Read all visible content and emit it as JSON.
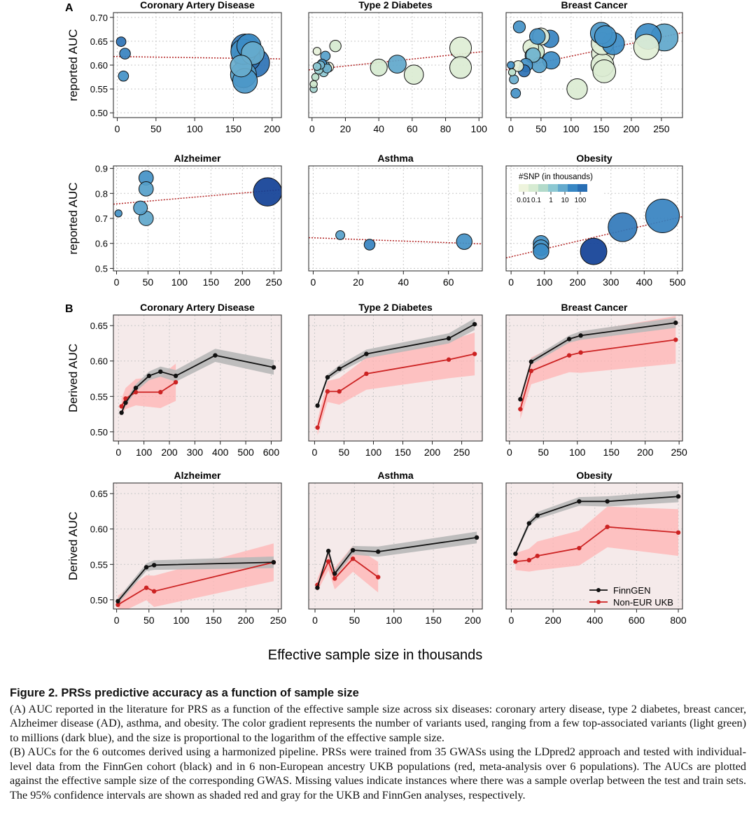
{
  "panel_labels": [
    "A",
    "B"
  ],
  "figure_xlabel": "Effective sample size in thousands",
  "colors": {
    "finngen": "#111111",
    "noneur": "#cc2222",
    "trend": "#b22222"
  },
  "legend_b": {
    "entries": [
      "FinnGEN",
      "Non-EUR UKB"
    ]
  },
  "legend_a": {
    "title": "#SNP (in thousands)",
    "ticks": [
      "0.01",
      "0.1",
      "1",
      "10",
      "100"
    ]
  },
  "caption": {
    "title": "Figure 2.   PRSs predictive accuracy as a function of sample size",
    "para_a": "(A) AUC reported in the literature for PRS as a function of the effective sample size across six diseases: coronary artery disease, type 2 diabetes, breast cancer, Alzheimer disease (AD), asthma, and obesity. The color gradient represents the number of variants used, ranging from a few top-associated variants (light green) to millions (dark blue), and the size is proportional to the logarithm of the effective sample size.",
    "para_b": "(B) AUCs for the 6 outcomes derived using a harmonized pipeline. PRSs were trained from 35 GWASs using the LDpred2 approach and tested with individual-level data from the FinnGen cohort (black) and in 6 non-European ancestry UKB populations (red, meta-analysis over 6 populations). The AUCs are plotted against the effective sample size of the corresponding GWAS. Missing values indicate instances where there was a sample overlap between the test and train sets. The 95% confidence intervals are shown as shaded red and gray for the UKB and FinnGen analyses, respectively."
  },
  "chart_data": [
    {
      "type": "scatter",
      "title": "Coronary Artery Disease",
      "ylabel": "reported AUC",
      "xlim": [
        -5,
        212
      ],
      "ylim": [
        0.49,
        0.71
      ],
      "xticks": [
        0,
        50,
        100,
        150,
        200
      ],
      "yticks": [
        0.5,
        0.55,
        0.6,
        0.65,
        0.7
      ],
      "trend": [
        [
          -5,
          0.618
        ],
        [
          212,
          0.613
        ]
      ],
      "points": [
        [
          5,
          0.649,
          1.6,
          0.8
        ],
        [
          10,
          0.624,
          1.8,
          0.75
        ],
        [
          8,
          0.577,
          1.7,
          0.7
        ],
        [
          165,
          0.636,
          4.6,
          0.78
        ],
        [
          168,
          0.615,
          4.4,
          0.8
        ],
        [
          163,
          0.628,
          4.2,
          0.7
        ],
        [
          170,
          0.64,
          4.0,
          0.72
        ],
        [
          163,
          0.58,
          4.3,
          0.65
        ],
        [
          165,
          0.567,
          4.1,
          0.68
        ],
        [
          178,
          0.605,
          4.8,
          0.8
        ],
        [
          175,
          0.625,
          3.8,
          0.6
        ],
        [
          160,
          0.598,
          3.6,
          0.6
        ]
      ]
    },
    {
      "type": "scatter",
      "title": "Type 2 Diabetes",
      "ylabel": "",
      "xlim": [
        -2,
        102
      ],
      "ylim": [
        0.49,
        0.71
      ],
      "xticks": [
        0,
        20,
        40,
        60,
        80,
        100
      ],
      "yticks": [
        0.5,
        0.55,
        0.6,
        0.65,
        0.7
      ],
      "trend": [
        [
          -2,
          0.59
        ],
        [
          102,
          0.628
        ]
      ],
      "points": [
        [
          3,
          0.629,
          1.3,
          0.05
        ],
        [
          1,
          0.55,
          1.2,
          0.4
        ],
        [
          2,
          0.575,
          1.2,
          0.3
        ],
        [
          3,
          0.597,
          1.3,
          0.5
        ],
        [
          4,
          0.59,
          1.4,
          0.45
        ],
        [
          5,
          0.6,
          1.4,
          0.55
        ],
        [
          7,
          0.585,
          1.5,
          0.5
        ],
        [
          8,
          0.598,
          1.5,
          0.6
        ],
        [
          8,
          0.619,
          1.6,
          0.65
        ],
        [
          10,
          0.596,
          1.6,
          0.0
        ],
        [
          14,
          0.64,
          1.9,
          0.15
        ],
        [
          1,
          0.56,
          1.2,
          0.2
        ],
        [
          6,
          0.603,
          1.5,
          0.7
        ],
        [
          40,
          0.595,
          2.8,
          0.15
        ],
        [
          51,
          0.602,
          3.0,
          0.62
        ],
        [
          61,
          0.58,
          3.2,
          0.12
        ],
        [
          89,
          0.636,
          3.6,
          0.1
        ],
        [
          89,
          0.595,
          3.6,
          0.12
        ],
        [
          9,
          0.593,
          1.5,
          0.58
        ]
      ]
    },
    {
      "type": "scatter",
      "title": "Breast Cancer",
      "ylabel": "",
      "xlim": [
        -8,
        285
      ],
      "ylim": [
        0.49,
        0.71
      ],
      "xticks": [
        0,
        50,
        100,
        150,
        200,
        250
      ],
      "yticks": [
        0.5,
        0.55,
        0.6,
        0.65,
        0.7
      ],
      "trend": [
        [
          -8,
          0.59
        ],
        [
          285,
          0.668
        ]
      ],
      "points": [
        [
          0,
          0.6,
          1.2,
          0.7
        ],
        [
          2,
          0.585,
          1.2,
          0.3
        ],
        [
          5,
          0.57,
          1.5,
          0.6
        ],
        [
          8,
          0.541,
          1.6,
          0.7
        ],
        [
          12,
          0.598,
          1.8,
          0.05
        ],
        [
          14,
          0.68,
          2.0,
          0.7
        ],
        [
          22,
          0.588,
          2.0,
          0.8
        ],
        [
          33,
          0.637,
          2.6,
          0.1
        ],
        [
          36,
          0.62,
          2.5,
          0.65
        ],
        [
          42,
          0.628,
          2.7,
          0.2
        ],
        [
          44,
          0.66,
          2.6,
          0.7
        ],
        [
          50,
          0.66,
          2.8,
          0.05
        ],
        [
          65,
          0.655,
          2.9,
          0.75
        ],
        [
          67,
          0.61,
          2.9,
          0.72
        ],
        [
          47,
          0.6,
          2.5,
          0.65
        ],
        [
          110,
          0.55,
          3.4,
          0.12
        ],
        [
          150,
          0.667,
          3.6,
          0.68
        ],
        [
          152,
          0.645,
          3.7,
          0.1
        ],
        [
          153,
          0.624,
          3.8,
          0.08
        ],
        [
          152,
          0.6,
          3.8,
          0.1
        ],
        [
          155,
          0.587,
          3.8,
          0.12
        ],
        [
          157,
          0.66,
          3.6,
          0.7
        ],
        [
          170,
          0.645,
          3.7,
          0.72
        ],
        [
          225,
          0.638,
          4.2,
          0.08
        ],
        [
          228,
          0.66,
          4.3,
          0.72
        ],
        [
          255,
          0.658,
          4.5,
          0.62
        ],
        [
          37,
          0.621,
          2.4,
          0.55
        ],
        [
          25,
          0.6,
          2.2,
          0.7
        ]
      ]
    },
    {
      "type": "scatter",
      "title": "Alzheimer",
      "ylabel": "reported AUC",
      "xlim": [
        -5,
        262
      ],
      "ylim": [
        0.49,
        0.91
      ],
      "xticks": [
        0,
        50,
        100,
        150,
        200,
        250
      ],
      "yticks": [
        0.5,
        0.6,
        0.7,
        0.8,
        0.9
      ],
      "trend": [
        [
          -5,
          0.757
        ],
        [
          262,
          0.815
        ]
      ],
      "points": [
        [
          3,
          0.72,
          1.2,
          0.7
        ],
        [
          38,
          0.742,
          2.3,
          0.65
        ],
        [
          47,
          0.7,
          2.4,
          0.62
        ],
        [
          47,
          0.862,
          2.4,
          0.7
        ],
        [
          47,
          0.818,
          2.4,
          0.65
        ],
        [
          240,
          0.806,
          4.7,
          0.95
        ]
      ]
    },
    {
      "type": "scatter",
      "title": "Asthma",
      "ylabel": "",
      "xlim": [
        -2,
        75
      ],
      "ylim": [
        0.49,
        0.91
      ],
      "xticks": [
        0,
        20,
        40,
        60
      ],
      "yticks": [
        0.5,
        0.6,
        0.7,
        0.8,
        0.9
      ],
      "trend": [
        [
          -2,
          0.623
        ],
        [
          75,
          0.598
        ]
      ],
      "points": [
        [
          12,
          0.633,
          1.5,
          0.65
        ],
        [
          25,
          0.595,
          1.8,
          0.75
        ],
        [
          67,
          0.607,
          2.6,
          0.7
        ]
      ]
    },
    {
      "type": "scatter",
      "title": "Obesity",
      "ylabel": "",
      "xlim": [
        -15,
        515
      ],
      "ylim": [
        0.49,
        0.91
      ],
      "xticks": [
        0,
        100,
        200,
        300,
        400,
        500
      ],
      "yticks": [
        0.5,
        0.6,
        0.7,
        0.8,
        0.9
      ],
      "trend": [
        [
          -15,
          0.542
        ],
        [
          515,
          0.707
        ]
      ],
      "points": [
        [
          90,
          0.6,
          2.6,
          0.7
        ],
        [
          90,
          0.583,
          2.6,
          0.68
        ],
        [
          90,
          0.568,
          2.6,
          0.72
        ],
        [
          248,
          0.568,
          4.4,
          0.95
        ],
        [
          335,
          0.665,
          4.8,
          0.78
        ],
        [
          455,
          0.71,
          5.6,
          0.75
        ]
      ]
    },
    {
      "type": "line",
      "title": "Coronary Artery Disease",
      "ylabel": "Derived AUC",
      "xlim": [
        -20,
        640
      ],
      "ylim": [
        0.487,
        0.665
      ],
      "xticks": [
        0,
        100,
        200,
        300,
        400,
        500,
        600
      ],
      "yticks": [
        0.5,
        0.55,
        0.6,
        0.65
      ],
      "series": [
        {
          "name": "FinnGEN",
          "x": [
            12,
            28,
            68,
            120,
            165,
            225,
            380,
            610
          ],
          "y": [
            0.527,
            0.541,
            0.562,
            0.579,
            0.585,
            0.579,
            0.608,
            0.591
          ],
          "ci": 0.003
        },
        {
          "name": "Non-EUR UKB",
          "x": [
            12,
            28,
            68,
            165,
            225
          ],
          "y": [
            0.536,
            0.547,
            0.556,
            0.556,
            0.57
          ],
          "ci": 0.011
        }
      ]
    },
    {
      "type": "line",
      "title": "Type 2 Diabetes",
      "ylabel": "",
      "xlim": [
        -10,
        285
      ],
      "ylim": [
        0.487,
        0.665
      ],
      "xticks": [
        0,
        50,
        100,
        150,
        200,
        250
      ],
      "yticks": [
        0.5,
        0.55,
        0.6,
        0.65
      ],
      "series": [
        {
          "name": "FinnGEN",
          "x": [
            5,
            22,
            42,
            88,
            228,
            272
          ],
          "y": [
            0.537,
            0.577,
            0.589,
            0.61,
            0.632,
            0.652
          ],
          "ci": 0.003
        },
        {
          "name": "Non-EUR UKB",
          "x": [
            5,
            22,
            42,
            88,
            228,
            272
          ],
          "y": [
            0.506,
            0.557,
            0.557,
            0.582,
            0.602,
            0.61
          ],
          "ci": 0.011
        }
      ]
    },
    {
      "type": "line",
      "title": "Breast Cancer",
      "ylabel": "",
      "xlim": [
        -5,
        255
      ],
      "ylim": [
        0.487,
        0.665
      ],
      "xticks": [
        0,
        50,
        100,
        150,
        200,
        250
      ],
      "yticks": [
        0.5,
        0.55,
        0.6,
        0.65
      ],
      "series": [
        {
          "name": "FinnGEN",
          "x": [
            16,
            32,
            88,
            105,
            245
          ],
          "y": [
            0.546,
            0.599,
            0.631,
            0.636,
            0.654
          ],
          "ci": 0.003
        },
        {
          "name": "Non-EUR UKB",
          "x": [
            16,
            32,
            88,
            105,
            245
          ],
          "y": [
            0.532,
            0.586,
            0.608,
            0.612,
            0.63
          ],
          "ci": 0.014
        }
      ]
    },
    {
      "type": "line",
      "title": "Alzheimer",
      "ylabel": "Derived AUC",
      "xlim": [
        -5,
        255
      ],
      "ylim": [
        0.487,
        0.665
      ],
      "xticks": [
        0,
        50,
        100,
        150,
        200,
        250
      ],
      "yticks": [
        0.5,
        0.55,
        0.6,
        0.65
      ],
      "series": [
        {
          "name": "FinnGEN",
          "x": [
            2,
            46,
            58,
            243
          ],
          "y": [
            0.498,
            0.546,
            0.549,
            0.553
          ],
          "ci": 0.004
        },
        {
          "name": "Non-EUR UKB",
          "x": [
            2,
            46,
            58,
            243
          ],
          "y": [
            0.493,
            0.517,
            0.512,
            0.553
          ],
          "ci": 0.013
        }
      ]
    },
    {
      "type": "line",
      "title": "Asthma",
      "ylabel": "",
      "xlim": [
        -8,
        212
      ],
      "ylim": [
        0.487,
        0.665
      ],
      "xticks": [
        0,
        50,
        100,
        150,
        200
      ],
      "yticks": [
        0.5,
        0.55,
        0.6,
        0.65
      ],
      "series": [
        {
          "name": "FinnGEN",
          "x": [
            3,
            17,
            25,
            48,
            80,
            205
          ],
          "y": [
            0.517,
            0.569,
            0.537,
            0.57,
            0.568,
            0.588
          ],
          "ci": 0.003
        },
        {
          "name": "Non-EUR UKB",
          "x": [
            3,
            17,
            25,
            48,
            80
          ],
          "y": [
            0.521,
            0.554,
            0.53,
            0.558,
            0.532
          ],
          "ci": 0.009
        }
      ]
    },
    {
      "type": "line",
      "title": "Obesity",
      "ylabel": "",
      "xlim": [
        -25,
        820
      ],
      "ylim": [
        0.487,
        0.665
      ],
      "xticks": [
        0,
        200,
        400,
        600,
        800
      ],
      "yticks": [
        0.5,
        0.55,
        0.6,
        0.65
      ],
      "series": [
        {
          "name": "FinnGEN",
          "x": [
            20,
            85,
            125,
            325,
            460,
            800
          ],
          "y": [
            0.565,
            0.608,
            0.619,
            0.639,
            0.639,
            0.646
          ],
          "ci": 0.003
        },
        {
          "name": "Non-EUR UKB",
          "x": [
            20,
            85,
            125,
            325,
            460,
            800
          ],
          "y": [
            0.554,
            0.556,
            0.562,
            0.573,
            0.603,
            0.595
          ],
          "ci": 0.012
        }
      ]
    }
  ]
}
